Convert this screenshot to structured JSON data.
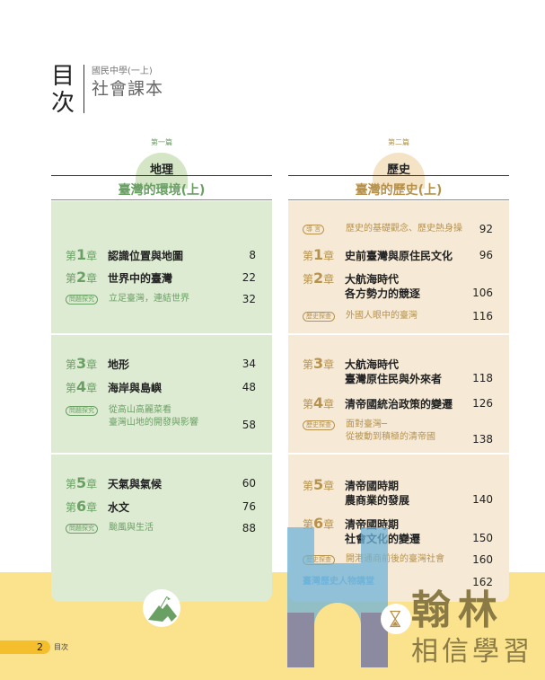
{
  "header": {
    "title": "目次",
    "subtitle_small": "國民中學(一上)",
    "subtitle": "社會課本"
  },
  "geo": {
    "part": "第一篇",
    "subject": "地理",
    "volume_title": "臺灣的環境(上)",
    "color": "#6aa064",
    "panel_color": "#deebd3",
    "chapters": [
      {
        "prefix": "第",
        "num": "1",
        "suffix": "章",
        "title": "認識位置與地圖",
        "page": "8"
      },
      {
        "prefix": "第",
        "num": "2",
        "suffix": "章",
        "title": "世界中的臺灣",
        "page": "22"
      },
      {
        "tag": "問題探究",
        "title": "立足臺灣，連結世界",
        "page": "32"
      },
      {
        "prefix": "第",
        "num": "3",
        "suffix": "章",
        "title": "地形",
        "page": "34"
      },
      {
        "prefix": "第",
        "num": "4",
        "suffix": "章",
        "title": "海岸與島嶼",
        "page": "48"
      },
      {
        "tag": "問題探究",
        "title": "從高山高麗菜看",
        "title2": "臺灣山地的開發與影響",
        "page": "58"
      },
      {
        "prefix": "第",
        "num": "5",
        "suffix": "章",
        "title": "天氣與氣候",
        "page": "60"
      },
      {
        "prefix": "第",
        "num": "6",
        "suffix": "章",
        "title": "水文",
        "page": "76"
      },
      {
        "tag": "問題探究",
        "title": "颱風與生活",
        "page": "88"
      }
    ]
  },
  "hist": {
    "part": "第二篇",
    "subject": "歷史",
    "volume_title": "臺灣的歷史(上)",
    "color": "#b7924c",
    "panel_color": "#f6ead6",
    "chapters": [
      {
        "tag": "導 言",
        "title": "歷史的基礎觀念、歷史熱身操",
        "page": "92"
      },
      {
        "prefix": "第",
        "num": "1",
        "suffix": "章",
        "title": "史前臺灣與原住民文化",
        "page": "96"
      },
      {
        "prefix": "第",
        "num": "2",
        "suffix": "章",
        "title": "大航海時代",
        "title2": "各方勢力的競逐",
        "page": "106"
      },
      {
        "tag": "歷史探查",
        "title": "外國人眼中的臺灣",
        "page": "116"
      },
      {
        "prefix": "第",
        "num": "3",
        "suffix": "章",
        "title": "大航海時代",
        "title2": "臺灣原住民與外來者",
        "page": "118"
      },
      {
        "prefix": "第",
        "num": "4",
        "suffix": "章",
        "title": "清帝國統治政策的變遷",
        "page": "126"
      },
      {
        "tag": "歷史探查",
        "title": "面對臺灣─",
        "title2": "從被動到積極的清帝國",
        "page": "138"
      },
      {
        "prefix": "第",
        "num": "5",
        "suffix": "章",
        "title": "清帝國時期",
        "title2": "農商業的發展",
        "page": "140"
      },
      {
        "prefix": "第",
        "num": "6",
        "suffix": "章",
        "title": "清帝國時期",
        "title2": "社會文化的變遷",
        "page": "150"
      },
      {
        "tag": "歷史探查",
        "title": "開港通商前後的臺灣社會",
        "page": "160"
      },
      {
        "title": "臺灣歷史人物講堂",
        "page": "162"
      }
    ]
  },
  "footer": {
    "page_number": "2",
    "label": "目次"
  },
  "watermark": {
    "brand": "翰林",
    "slogan": "相信學習"
  },
  "icons": {
    "geo": "mountain-flag-icon",
    "hist": "hourglass-icon"
  }
}
